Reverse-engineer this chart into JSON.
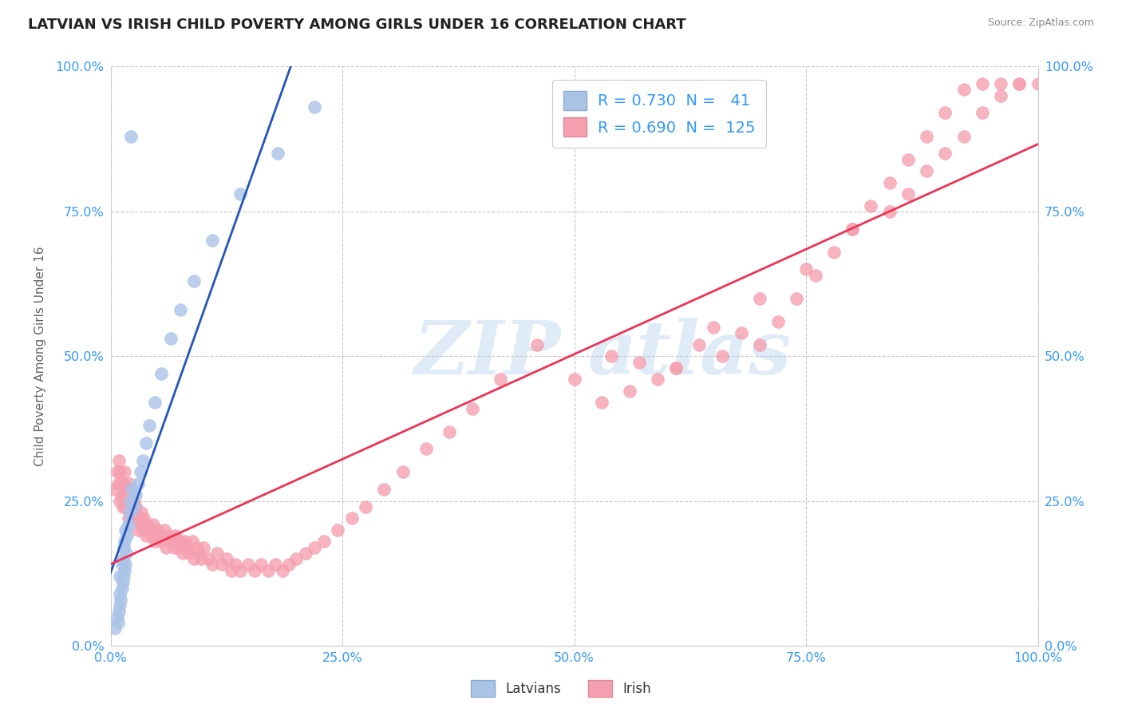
{
  "title": "LATVIAN VS IRISH CHILD POVERTY AMONG GIRLS UNDER 16 CORRELATION CHART",
  "source": "Source: ZipAtlas.com",
  "ylabel": "Child Poverty Among Girls Under 16",
  "latvian_R": 0.73,
  "latvian_N": 41,
  "irish_R": 0.69,
  "irish_N": 125,
  "latvian_color": "#aac4e8",
  "irish_color": "#f5a0b0",
  "latvian_line_color": "#2255bb",
  "irish_line_color": "#ee3355",
  "background_color": "#ffffff",
  "grid_color": "#c8c8c8",
  "title_color": "#222222",
  "axis_label_color": "#3399ff",
  "legend_R_color": "#3399ff",
  "source_color": "#888888",
  "ylabel_color": "#666666",
  "watermark_color": "#b8d4ee",
  "xlim": [
    0.0,
    1.0
  ],
  "ylim": [
    0.0,
    1.0
  ],
  "tick_vals": [
    0.0,
    0.25,
    0.5,
    0.75,
    1.0
  ],
  "xticklabels": [
    "0.0%",
    "25.0%",
    "50.0%",
    "75.0%",
    "100.0%"
  ],
  "yticklabels": [
    "0.0%",
    "25.0%",
    "50.0%",
    "75.0%",
    "100.0%"
  ],
  "latvian_x": [
    0.005,
    0.007,
    0.008,
    0.009,
    0.01,
    0.01,
    0.01,
    0.011,
    0.012,
    0.012,
    0.013,
    0.013,
    0.014,
    0.014,
    0.015,
    0.015,
    0.016,
    0.016,
    0.017,
    0.018,
    0.019,
    0.02,
    0.021,
    0.022,
    0.023,
    0.025,
    0.027,
    0.03,
    0.032,
    0.035,
    0.038,
    0.042,
    0.048,
    0.055,
    0.065,
    0.075,
    0.09,
    0.11,
    0.14,
    0.18,
    0.22
  ],
  "latvian_y": [
    0.03,
    0.05,
    0.04,
    0.06,
    0.07,
    0.09,
    0.12,
    0.08,
    0.1,
    0.14,
    0.11,
    0.15,
    0.12,
    0.17,
    0.13,
    0.18,
    0.14,
    0.2,
    0.16,
    0.19,
    0.21,
    0.23,
    0.25,
    0.88,
    0.27,
    0.24,
    0.26,
    0.28,
    0.3,
    0.32,
    0.35,
    0.38,
    0.42,
    0.47,
    0.53,
    0.58,
    0.63,
    0.7,
    0.78,
    0.85,
    0.93
  ],
  "irish_x": [
    0.005,
    0.007,
    0.008,
    0.009,
    0.01,
    0.01,
    0.011,
    0.012,
    0.013,
    0.014,
    0.015,
    0.015,
    0.016,
    0.017,
    0.018,
    0.019,
    0.02,
    0.021,
    0.022,
    0.023,
    0.025,
    0.026,
    0.027,
    0.028,
    0.03,
    0.031,
    0.032,
    0.033,
    0.035,
    0.036,
    0.038,
    0.04,
    0.042,
    0.044,
    0.046,
    0.048,
    0.05,
    0.052,
    0.055,
    0.058,
    0.06,
    0.063,
    0.065,
    0.068,
    0.07,
    0.073,
    0.075,
    0.078,
    0.08,
    0.082,
    0.085,
    0.088,
    0.09,
    0.093,
    0.095,
    0.098,
    0.1,
    0.105,
    0.11,
    0.115,
    0.12,
    0.125,
    0.13,
    0.135,
    0.14,
    0.148,
    0.155,
    0.162,
    0.17,
    0.178,
    0.185,
    0.192,
    0.2,
    0.21,
    0.22,
    0.23,
    0.245,
    0.26,
    0.275,
    0.295,
    0.315,
    0.34,
    0.365,
    0.39,
    0.42,
    0.46,
    0.5,
    0.54,
    0.57,
    0.59,
    0.61,
    0.635,
    0.66,
    0.68,
    0.7,
    0.72,
    0.74,
    0.76,
    0.78,
    0.8,
    0.82,
    0.84,
    0.86,
    0.88,
    0.9,
    0.92,
    0.94,
    0.96,
    0.98,
    1.0,
    0.53,
    0.56,
    0.61,
    0.65,
    0.7,
    0.75,
    0.8,
    0.84,
    0.86,
    0.88,
    0.9,
    0.92,
    0.94,
    0.96,
    0.98
  ],
  "irish_y": [
    0.27,
    0.3,
    0.28,
    0.32,
    0.25,
    0.3,
    0.28,
    0.26,
    0.24,
    0.28,
    0.26,
    0.3,
    0.24,
    0.27,
    0.25,
    0.22,
    0.28,
    0.26,
    0.24,
    0.22,
    0.25,
    0.23,
    0.24,
    0.22,
    0.2,
    0.22,
    0.21,
    0.23,
    0.2,
    0.22,
    0.19,
    0.21,
    0.2,
    0.19,
    0.21,
    0.18,
    0.2,
    0.19,
    0.18,
    0.2,
    0.17,
    0.19,
    0.18,
    0.17,
    0.19,
    0.17,
    0.18,
    0.16,
    0.18,
    0.17,
    0.16,
    0.18,
    0.15,
    0.17,
    0.16,
    0.15,
    0.17,
    0.15,
    0.14,
    0.16,
    0.14,
    0.15,
    0.13,
    0.14,
    0.13,
    0.14,
    0.13,
    0.14,
    0.13,
    0.14,
    0.13,
    0.14,
    0.15,
    0.16,
    0.17,
    0.18,
    0.2,
    0.22,
    0.24,
    0.27,
    0.3,
    0.34,
    0.37,
    0.41,
    0.46,
    0.52,
    0.46,
    0.5,
    0.49,
    0.46,
    0.48,
    0.52,
    0.5,
    0.54,
    0.52,
    0.56,
    0.6,
    0.64,
    0.68,
    0.72,
    0.76,
    0.8,
    0.84,
    0.88,
    0.92,
    0.96,
    0.97,
    0.97,
    0.97,
    0.97,
    0.42,
    0.44,
    0.48,
    0.55,
    0.6,
    0.65,
    0.72,
    0.75,
    0.78,
    0.82,
    0.85,
    0.88,
    0.92,
    0.95,
    0.97
  ]
}
